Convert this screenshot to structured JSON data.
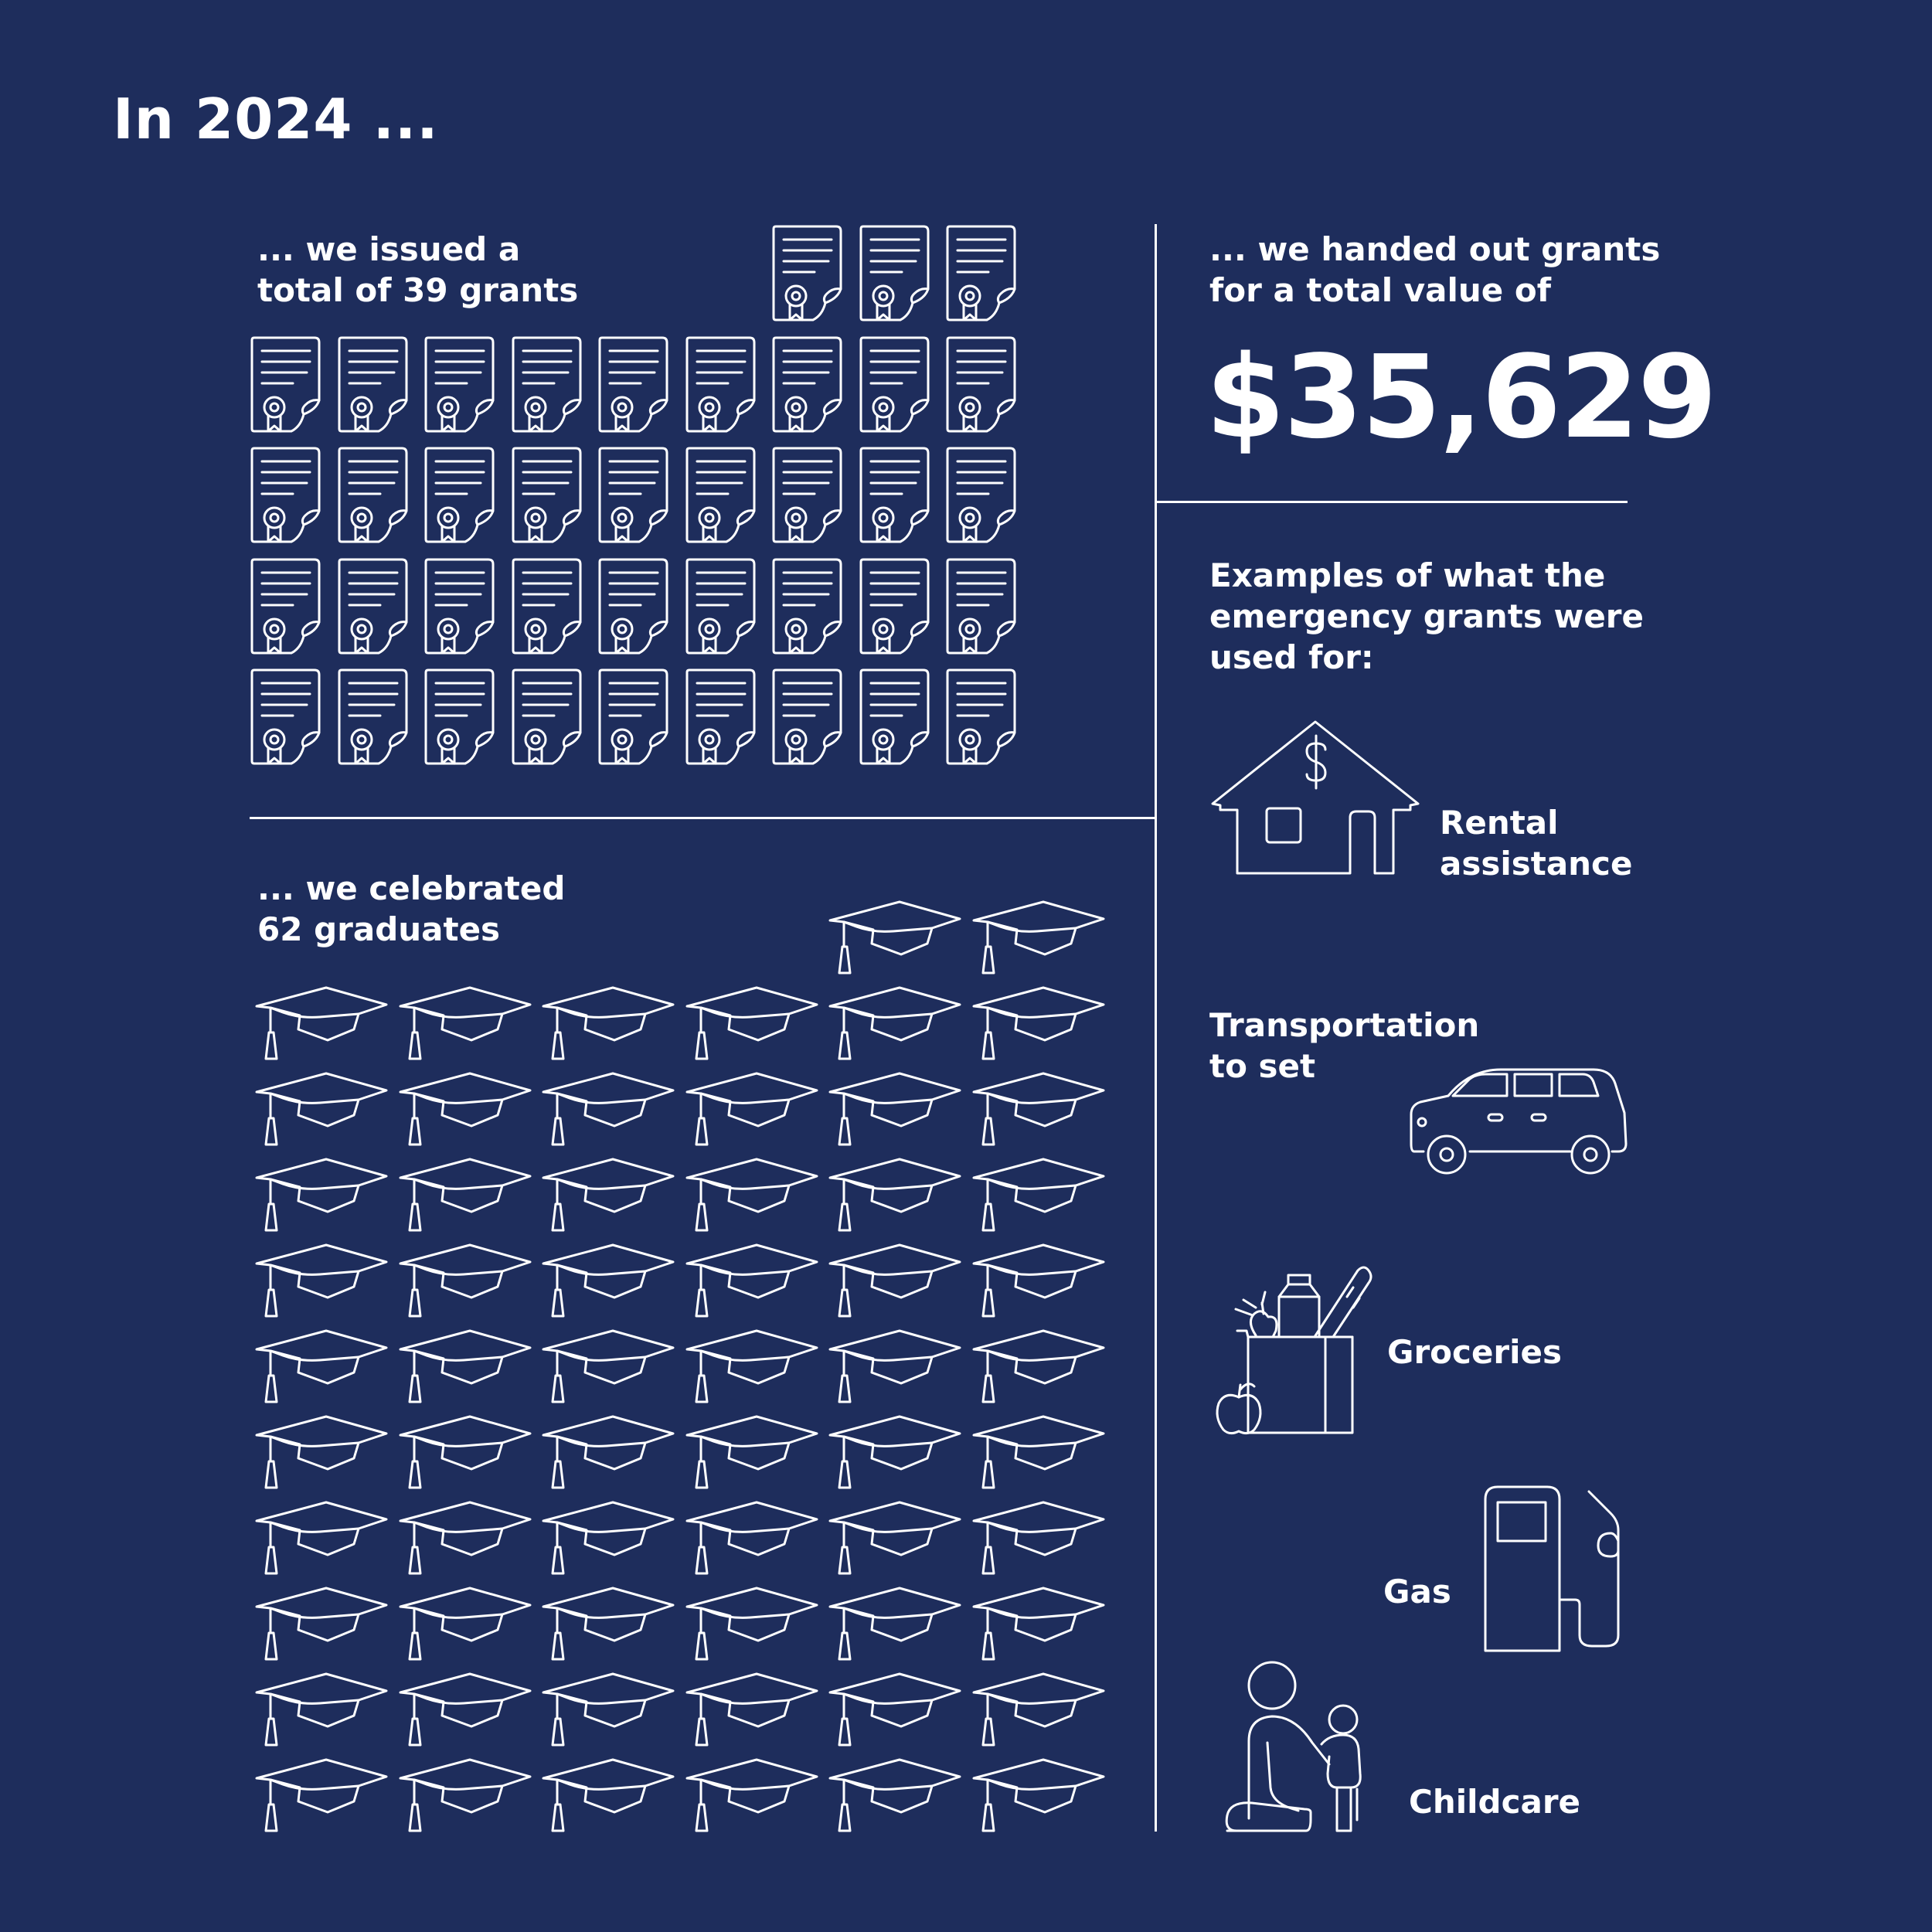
{
  "heading": "In 2024 ...",
  "grants": {
    "caption_line1": "... we issued a",
    "caption_line2": "total of 39 grants",
    "count": 39,
    "icon": "certificate-icon"
  },
  "graduates": {
    "caption_line1": "... we celebrated",
    "caption_line2": "62 graduates",
    "count": 62,
    "icon": "graduation-cap-icon"
  },
  "value": {
    "caption_line1": "... we handed out grants",
    "caption_line2": "for a total value of",
    "amount": "$35,629"
  },
  "examples": {
    "caption_line1": "Examples of what the",
    "caption_line2": "emergency grants were",
    "caption_line3": "used for:",
    "items": [
      {
        "line1": "Rental",
        "line2": "assistance",
        "icon": "house-dollar-icon"
      },
      {
        "line1": "Transportation",
        "line2": "to set",
        "icon": "car-icon"
      },
      {
        "line1": "Groceries",
        "line2": "",
        "icon": "grocery-bag-icon"
      },
      {
        "line1": "Gas",
        "line2": "",
        "icon": "gas-pump-icon"
      },
      {
        "line1": "Childcare",
        "line2": "",
        "icon": "childcare-icon"
      }
    ]
  },
  "colors": {
    "background": "#1e2d5c",
    "foreground": "#ffffff"
  }
}
